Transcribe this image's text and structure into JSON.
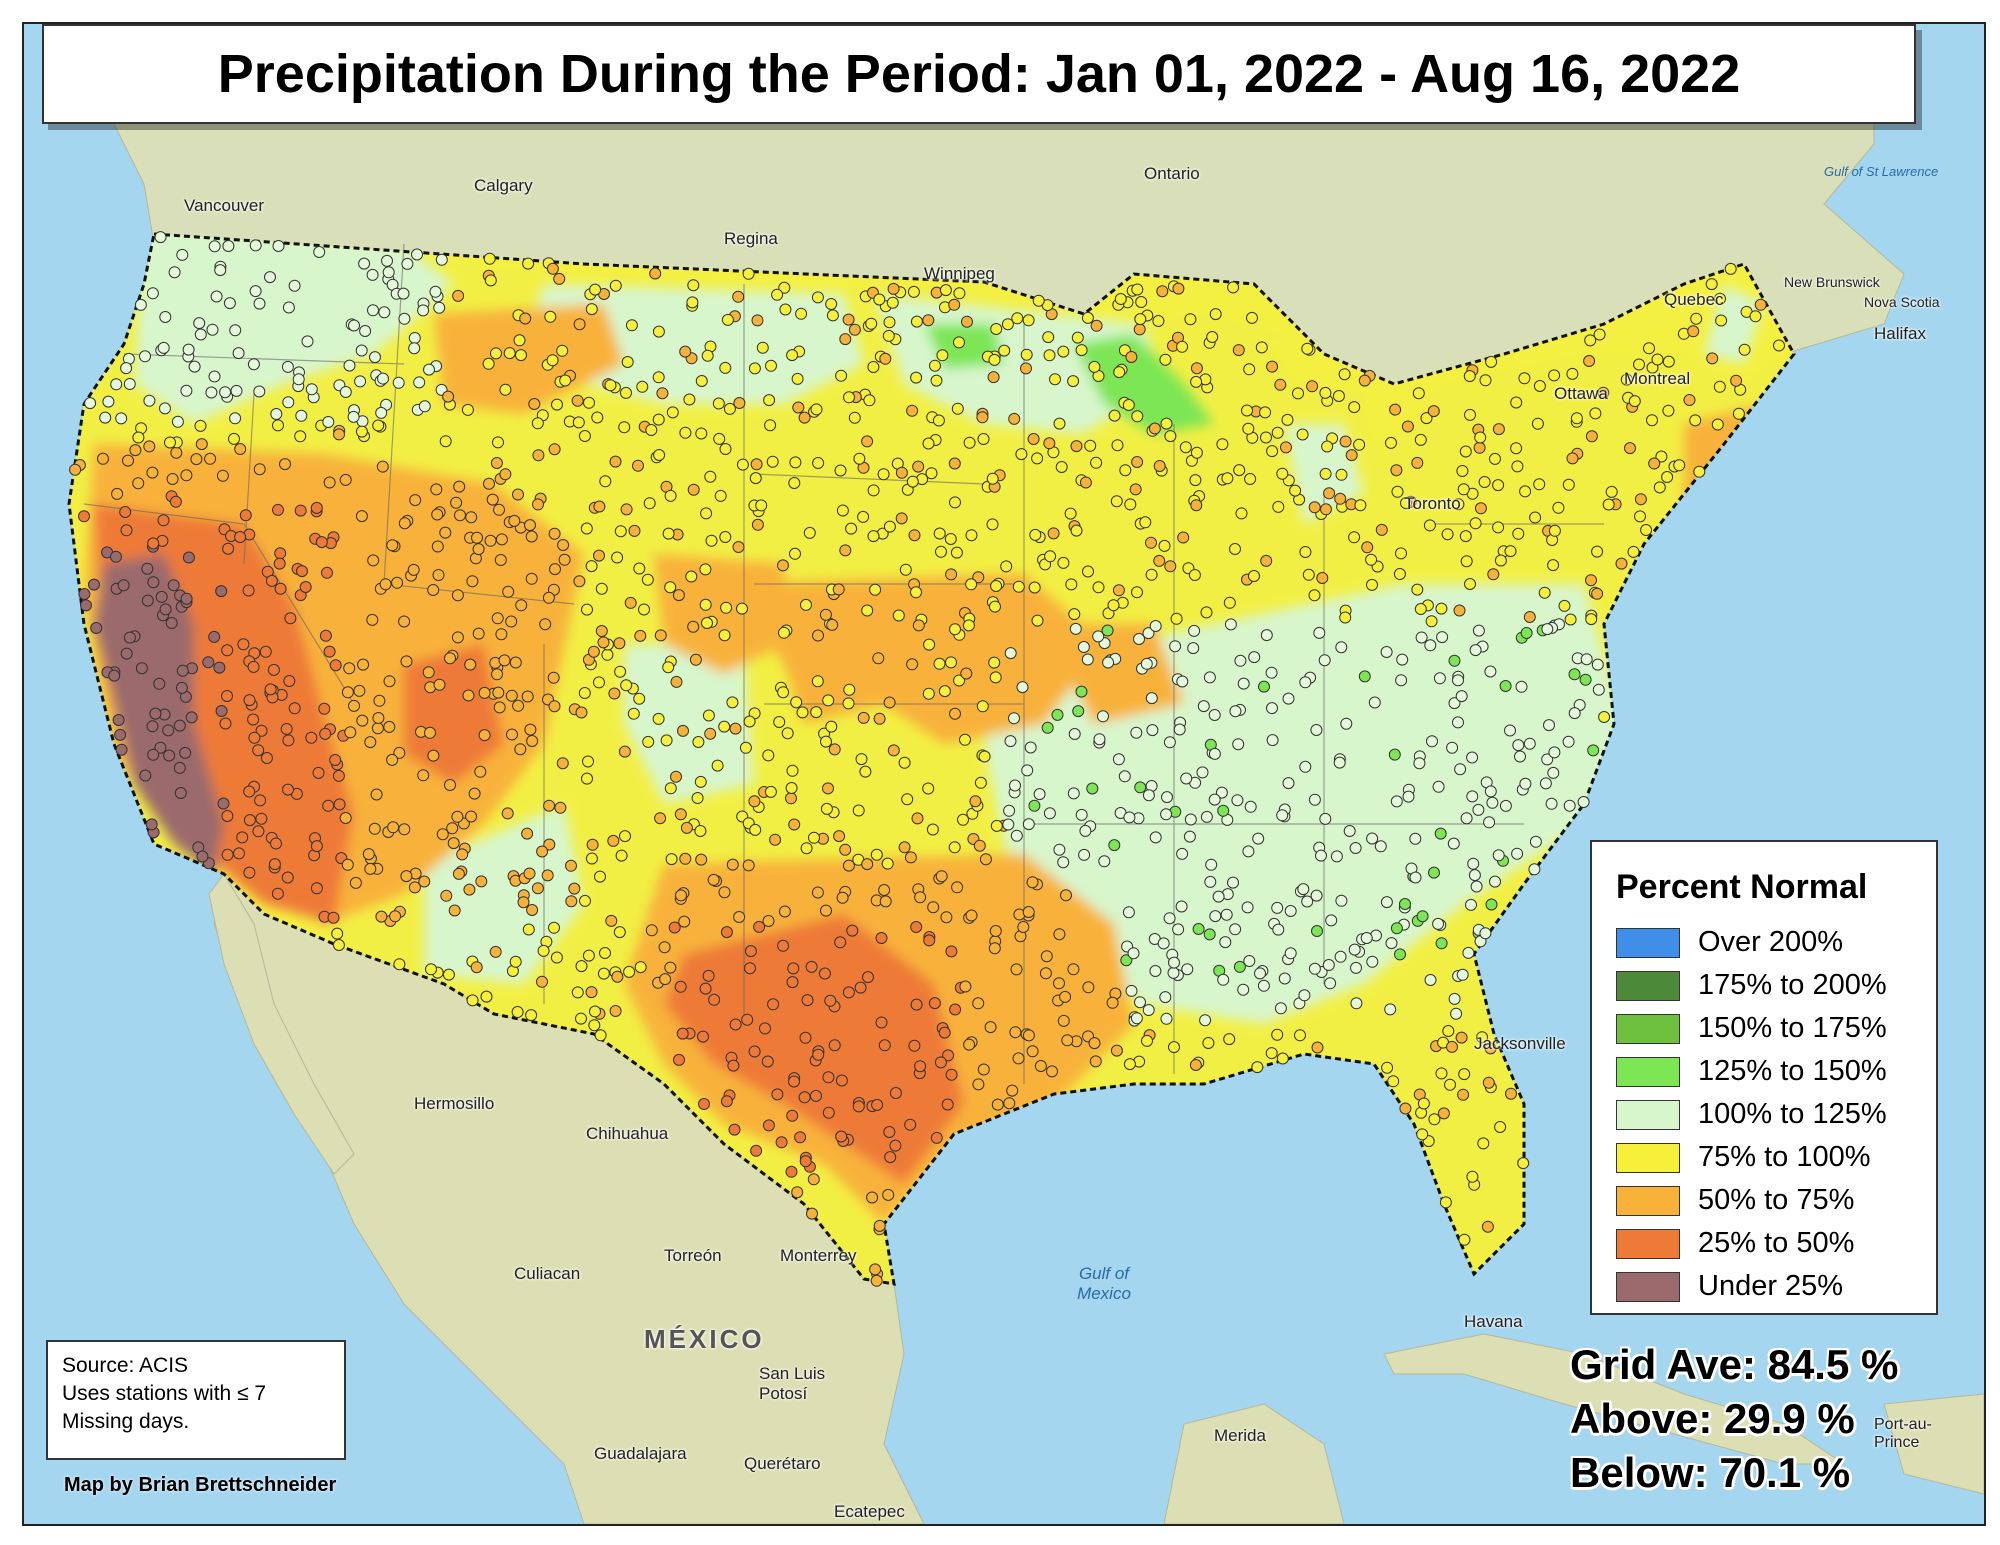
{
  "title": "Precipitation During the Period: Jan 01, 2022 - Aug 16, 2022",
  "legend": {
    "title": "Percent Normal",
    "items": [
      {
        "label": "Over 200%",
        "color": "#3f8fe8"
      },
      {
        "label": "175% to 200%",
        "color": "#4c8a3a"
      },
      {
        "label": "150% to 175%",
        "color": "#6ec13f"
      },
      {
        "label": "125% to 150%",
        "color": "#7de655"
      },
      {
        "label": "100% to 125%",
        "color": "#d8f6cc"
      },
      {
        "label": "75% to 100%",
        "color": "#f6f03a"
      },
      {
        "label": "50% to 75%",
        "color": "#f8b23a"
      },
      {
        "label": "25% to 50%",
        "color": "#ee7a38"
      },
      {
        "label": "Under 25%",
        "color": "#9b6a6c"
      }
    ]
  },
  "stats": {
    "grid_ave": "Grid Ave: 84.5 %",
    "above": "Above: 29.9 %",
    "below": "Below: 70.1 %"
  },
  "source": {
    "line1": "Source: ACIS",
    "line2": "Uses stations with ≤ 7",
    "line3": "Missing days."
  },
  "credit": "Map by Brian Brettschneider",
  "place_labels": {
    "calgary": "Calgary",
    "regina": "Regina",
    "winnipeg": "Winnipeg",
    "ontario": "Ontario",
    "vancouver": "Vancouver",
    "ottawa": "Ottawa",
    "montreal": "Montreal",
    "quebec": "Quebec",
    "toronto": "Toronto",
    "halifax": "Halifax",
    "new_brunswick": "New Brunswick",
    "nova_scotia": "Nova Scotia",
    "gulf_st_lawrence": "Gulf of St Lawrence",
    "hermosillo": "Hermosillo",
    "chihuahua": "Chihuahua",
    "culiacan": "Culiacan",
    "torreon": "Torreón",
    "monterrey": "Monterrey",
    "mexico": "MÉXICO",
    "san_luis_potosi": "San Luis Potosí",
    "guadalajara": "Guadalajara",
    "queretaro": "Querétaro",
    "merida": "Merida",
    "havana": "Havana",
    "gulf_of_mexico": "Gulf of Mexico",
    "jacksonville": "Jacksonville",
    "port_au_prince": "Port-au-Prince",
    "ecatepec": "Ecatepec"
  }
}
